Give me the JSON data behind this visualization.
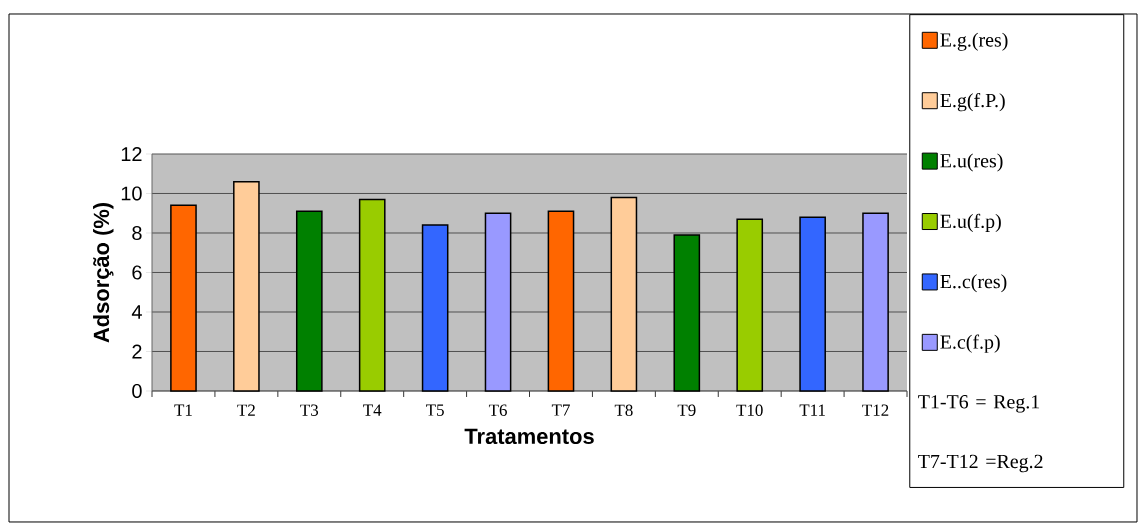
{
  "chart_data": {
    "type": "bar",
    "xlabel": "Tratamentos",
    "ylabel": "Adsorção (%)",
    "categories": [
      "T1",
      "T2",
      "T3",
      "T4",
      "T5",
      "T6",
      "T7",
      "T8",
      "T9",
      "T10",
      "T11",
      "T12"
    ],
    "series": [
      {
        "name": "E.g.(res)",
        "color": "#ff6600",
        "values": [
          9.4,
          null,
          null,
          null,
          null,
          null,
          9.1,
          null,
          null,
          null,
          null,
          null
        ]
      },
      {
        "name": "E.g(f.P.)",
        "color": "#ffcc99",
        "values": [
          null,
          10.6,
          null,
          null,
          null,
          null,
          null,
          9.8,
          null,
          null,
          null,
          null
        ]
      },
      {
        "name": "E.u(res)",
        "color": "#008000",
        "values": [
          null,
          null,
          9.1,
          null,
          null,
          null,
          null,
          null,
          7.9,
          null,
          null,
          null
        ]
      },
      {
        "name": "E.u(f.p)",
        "color": "#99cc00",
        "values": [
          null,
          null,
          null,
          9.7,
          null,
          null,
          null,
          null,
          null,
          8.7,
          null,
          null
        ]
      },
      {
        "name": "E..c(res)",
        "color": "#3366ff",
        "values": [
          null,
          null,
          null,
          null,
          8.4,
          null,
          null,
          null,
          null,
          null,
          8.8,
          null
        ]
      },
      {
        "name": "E.c(f.p)",
        "color": "#9999ff",
        "values": [
          null,
          null,
          null,
          null,
          null,
          9.0,
          null,
          null,
          null,
          null,
          null,
          9.0
        ]
      }
    ],
    "ylim": [
      0,
      12
    ],
    "yticks": [
      0,
      2,
      4,
      6,
      8,
      10,
      12
    ],
    "grid": "y",
    "legend": "right",
    "annotations": [
      "T1-T6 = Reg.1",
      "T7-T12 =Reg.2"
    ]
  }
}
